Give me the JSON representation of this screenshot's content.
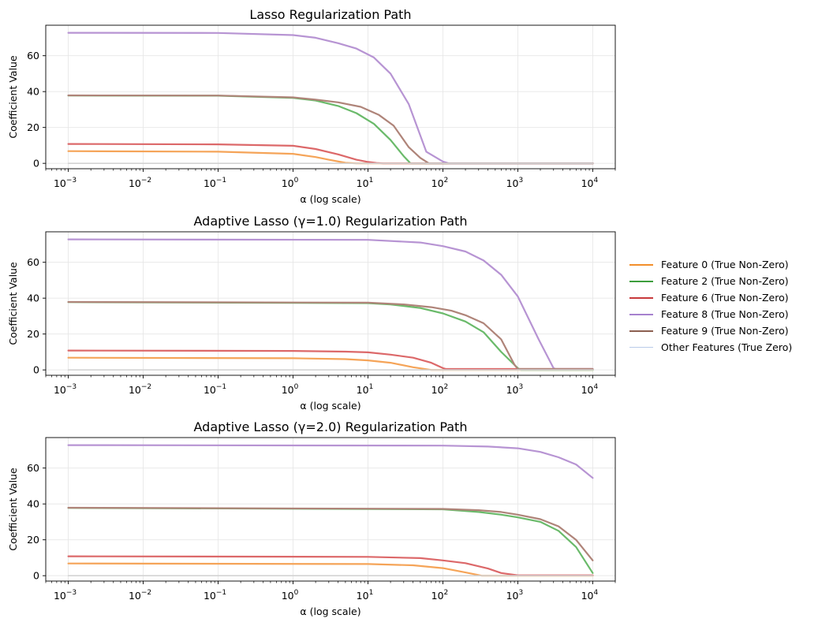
{
  "chart_data": [
    {
      "type": "line",
      "title": "Lasso Regularization Path",
      "xlabel": "α (log scale)",
      "ylabel": "Coefficient Value",
      "xscale": "log",
      "xlim": [
        0.0005,
        20000
      ],
      "ylim": [
        -3,
        77
      ],
      "grid": true,
      "x_tick_labels": [
        {
          "base": "10",
          "exp": "−3"
        },
        {
          "base": "10",
          "exp": "−2"
        },
        {
          "base": "10",
          "exp": "−1"
        },
        {
          "base": "10",
          "exp": "0"
        },
        {
          "base": "10",
          "exp": "1"
        },
        {
          "base": "10",
          "exp": "2"
        },
        {
          "base": "10",
          "exp": "3"
        },
        {
          "base": "10",
          "exp": "4"
        }
      ],
      "y_ticks": [
        0,
        20,
        40,
        60
      ],
      "y_tick_labels": [
        "0",
        "20",
        "40",
        "60"
      ],
      "series": [
        {
          "name": "Feature 0 (True Non-Zero)",
          "color": "#f5a458",
          "x": [
            0.001,
            0.1,
            1,
            2,
            3,
            5,
            7,
            10000
          ],
          "y": [
            6.8,
            6.5,
            5.3,
            3.5,
            2,
            0.3,
            0,
            0
          ]
        },
        {
          "name": "Feature 2 (True Non-Zero)",
          "color": "#6aba6a",
          "x": [
            0.001,
            0.1,
            1,
            2,
            4,
            7,
            12,
            20,
            30,
            37,
            40,
            10000
          ],
          "y": [
            37.8,
            37.7,
            36.5,
            35,
            32,
            28,
            22,
            13,
            4,
            0,
            0,
            0
          ]
        },
        {
          "name": "Feature 6 (True Non-Zero)",
          "color": "#dc6869",
          "x": [
            0.001,
            0.1,
            1,
            2,
            4,
            7,
            10,
            13,
            16,
            10000
          ],
          "y": [
            10.8,
            10.6,
            9.8,
            8,
            5,
            2,
            0.8,
            0.2,
            0,
            0
          ]
        },
        {
          "name": "Feature 8 (True Non-Zero)",
          "color": "#b794d3",
          "x": [
            0.001,
            0.1,
            1,
            2,
            4,
            7,
            12,
            20,
            35,
            60,
            100,
            120,
            10000
          ],
          "y": [
            72.8,
            72.7,
            71.5,
            70,
            67,
            64,
            59,
            50,
            33,
            6.5,
            1,
            0,
            0
          ]
        },
        {
          "name": "Feature 9 (True Non-Zero)",
          "color": "#af8479",
          "x": [
            0.001,
            0.1,
            1,
            2,
            4,
            8,
            14,
            22,
            35,
            50,
            65,
            70,
            10000
          ],
          "y": [
            37.9,
            37.8,
            36.8,
            35.5,
            34,
            31.5,
            27,
            21,
            9,
            3,
            0,
            0,
            0
          ]
        },
        {
          "name": "Other Features (True Zero)",
          "color": "#d3d3d3",
          "x": [
            0.001,
            10000
          ],
          "y": [
            0,
            0
          ]
        }
      ]
    },
    {
      "type": "line",
      "title": "Adaptive Lasso (γ=1.0) Regularization Path",
      "xlabel": "α (log scale)",
      "ylabel": "Coefficient Value",
      "xscale": "log",
      "xlim": [
        0.0005,
        20000
      ],
      "ylim": [
        -3,
        77
      ],
      "grid": true,
      "x_tick_labels": [
        {
          "base": "10",
          "exp": "−3"
        },
        {
          "base": "10",
          "exp": "−2"
        },
        {
          "base": "10",
          "exp": "−1"
        },
        {
          "base": "10",
          "exp": "0"
        },
        {
          "base": "10",
          "exp": "1"
        },
        {
          "base": "10",
          "exp": "2"
        },
        {
          "base": "10",
          "exp": "3"
        },
        {
          "base": "10",
          "exp": "4"
        }
      ],
      "y_ticks": [
        0,
        20,
        40,
        60
      ],
      "y_tick_labels": [
        "0",
        "20",
        "40",
        "60"
      ],
      "series": [
        {
          "name": "Feature 0 (True Non-Zero)",
          "color": "#f5a458",
          "x": [
            0.001,
            1,
            5,
            10,
            20,
            40,
            70,
            10000
          ],
          "y": [
            6.8,
            6.5,
            6,
            5.3,
            4,
            1.5,
            0,
            0
          ]
        },
        {
          "name": "Feature 2 (True Non-Zero)",
          "color": "#6aba6a",
          "x": [
            0.001,
            10,
            20,
            50,
            100,
            200,
            350,
            600,
            1000,
            1100,
            10000
          ],
          "y": [
            37.8,
            37.2,
            36.5,
            34.5,
            31.5,
            27,
            21,
            10,
            1,
            0,
            0
          ]
        },
        {
          "name": "Feature 6 (True Non-Zero)",
          "color": "#dc6869",
          "x": [
            0.001,
            1,
            5,
            10,
            20,
            40,
            70,
            100,
            110,
            10000
          ],
          "y": [
            10.8,
            10.6,
            10.2,
            9.8,
            8.5,
            6.8,
            4,
            1,
            0.5,
            0.5
          ]
        },
        {
          "name": "Feature 8 (True Non-Zero)",
          "color": "#b794d3",
          "x": [
            0.001,
            10,
            50,
            100,
            200,
            350,
            600,
            1000,
            1900,
            3000,
            3200,
            10000
          ],
          "y": [
            72.8,
            72.5,
            71,
            69,
            66,
            61,
            53,
            41,
            17,
            1,
            0.5,
            0.5
          ]
        },
        {
          "name": "Feature 9 (True Non-Zero)",
          "color": "#af8479",
          "x": [
            0.001,
            10,
            30,
            70,
            130,
            200,
            350,
            600,
            900,
            1000,
            10000
          ],
          "y": [
            37.9,
            37.5,
            36.5,
            35,
            33,
            30.5,
            26,
            17,
            3,
            0.5,
            0.5
          ]
        },
        {
          "name": "Other Features (True Zero)",
          "color": "#d3d3d3",
          "x": [
            0.001,
            10000
          ],
          "y": [
            0,
            0
          ]
        }
      ]
    },
    {
      "type": "line",
      "title": "Adaptive Lasso (γ=2.0) Regularization Path",
      "xlabel": "α (log scale)",
      "ylabel": "Coefficient Value",
      "xscale": "log",
      "xlim": [
        0.0005,
        20000
      ],
      "ylim": [
        -3,
        77
      ],
      "grid": true,
      "x_tick_labels": [
        {
          "base": "10",
          "exp": "−3"
        },
        {
          "base": "10",
          "exp": "−2"
        },
        {
          "base": "10",
          "exp": "−1"
        },
        {
          "base": "10",
          "exp": "0"
        },
        {
          "base": "10",
          "exp": "1"
        },
        {
          "base": "10",
          "exp": "2"
        },
        {
          "base": "10",
          "exp": "3"
        },
        {
          "base": "10",
          "exp": "4"
        }
      ],
      "y_ticks": [
        0,
        20,
        40,
        60
      ],
      "y_tick_labels": [
        "0",
        "20",
        "40",
        "60"
      ],
      "series": [
        {
          "name": "Feature 0 (True Non-Zero)",
          "color": "#f5a458",
          "x": [
            0.001,
            10,
            40,
            100,
            200,
            330,
            400,
            10000
          ],
          "y": [
            6.8,
            6.5,
            5.8,
            4.2,
            1.8,
            0,
            0,
            0
          ]
        },
        {
          "name": "Feature 2 (True Non-Zero)",
          "color": "#6aba6a",
          "x": [
            0.001,
            100,
            300,
            600,
            1000,
            2000,
            3500,
            6000,
            10000
          ],
          "y": [
            37.8,
            37,
            35.5,
            34,
            32.5,
            30,
            25,
            16,
            1.5
          ]
        },
        {
          "name": "Feature 6 (True Non-Zero)",
          "color": "#dc6869",
          "x": [
            0.001,
            10,
            50,
            100,
            200,
            400,
            600,
            1000,
            10000
          ],
          "y": [
            10.8,
            10.5,
            9.8,
            8.5,
            7,
            4,
            1.5,
            0.2,
            0.2
          ]
        },
        {
          "name": "Feature 8 (True Non-Zero)",
          "color": "#b794d3",
          "x": [
            0.001,
            100,
            400,
            1000,
            2000,
            3500,
            6000,
            10000
          ],
          "y": [
            72.8,
            72.5,
            72,
            71,
            69,
            66,
            62,
            54.5
          ]
        },
        {
          "name": "Feature 9 (True Non-Zero)",
          "color": "#af8479",
          "x": [
            0.001,
            100,
            300,
            600,
            1000,
            2000,
            3500,
            6000,
            10000
          ],
          "y": [
            37.9,
            37.2,
            36.5,
            35.5,
            34,
            31.5,
            27.5,
            20,
            8.5
          ]
        },
        {
          "name": "Other Features (True Zero)",
          "color": "#d3d3d3",
          "x": [
            0.001,
            10000
          ],
          "y": [
            0,
            0
          ]
        }
      ]
    }
  ],
  "legend": {
    "placement": "right",
    "items": [
      {
        "label": "Feature 0 (True Non-Zero)",
        "color": "#f28e2b"
      },
      {
        "label": "Feature 2 (True Non-Zero)",
        "color": "#3d9e3d"
      },
      {
        "label": "Feature 6 (True Non-Zero)",
        "color": "#c8393b"
      },
      {
        "label": "Feature 8 (True Non-Zero)",
        "color": "#a681ce"
      },
      {
        "label": "Feature 9 (True Non-Zero)",
        "color": "#8c5f50"
      },
      {
        "label": "Other Features (True Zero)",
        "color": "#b9cbe9"
      }
    ]
  }
}
